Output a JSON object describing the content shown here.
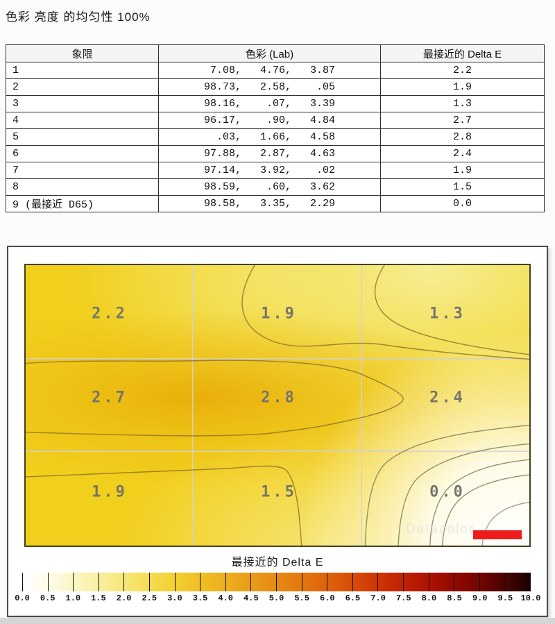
{
  "page_title": "色彩 亮度 的均匀性 100%",
  "table": {
    "headers": {
      "quadrant": "象限",
      "lab": "色彩 (Lab)",
      "delta_e": "最接近的 Delta E"
    },
    "rows": [
      {
        "quadrant": "1",
        "lab": " 7.08,   4.76,   3.87",
        "delta_e": "2.2"
      },
      {
        "quadrant": "2",
        "lab": "98.73,   2.58,    .05",
        "delta_e": "1.9"
      },
      {
        "quadrant": "3",
        "lab": "98.16,    .07,   3.39",
        "delta_e": "1.3"
      },
      {
        "quadrant": "4",
        "lab": "96.17,    .90,   4.84",
        "delta_e": "2.7"
      },
      {
        "quadrant": "5",
        "lab": "  .03,   1.66,   4.58",
        "delta_e": "2.8"
      },
      {
        "quadrant": "6",
        "lab": "97.88,   2.87,   4.63",
        "delta_e": "2.4"
      },
      {
        "quadrant": "7",
        "lab": "97.14,   3.92,    .02",
        "delta_e": "1.9"
      },
      {
        "quadrant": "8",
        "lab": "98.59,    .60,   3.62",
        "delta_e": "1.5"
      },
      {
        "quadrant": "9 (最接近 D65)",
        "lab": "98.58,   3.35,   2.29",
        "delta_e": "0.0"
      }
    ]
  },
  "chart_data": {
    "type": "heatmap",
    "title": "色彩 亮度 的均匀性 100%",
    "grid_rows": 3,
    "grid_cols": 3,
    "values": [
      [
        2.2,
        1.9,
        1.3
      ],
      [
        2.7,
        2.8,
        2.4
      ],
      [
        1.9,
        1.5,
        0.0
      ]
    ],
    "grid_labels": [
      [
        "2.2",
        "1.9",
        "1.3"
      ],
      [
        "2.7",
        "2.8",
        "2.4"
      ],
      [
        "1.9",
        "1.5",
        "0.0"
      ]
    ],
    "best_quadrant_note": "9 (最接近 D65)",
    "colorbar": {
      "label": "最接近的 Delta E",
      "min": 0.0,
      "max": 10.0,
      "step": 0.5,
      "ticks": [
        "0.0",
        "0.5",
        "1.0",
        "1.5",
        "2.0",
        "2.5",
        "3.0",
        "3.5",
        "4.0",
        "4.5",
        "5.0",
        "5.5",
        "6.0",
        "6.5",
        "7.0",
        "7.5",
        "8.0",
        "8.5",
        "9.0",
        "9.5",
        "10.0"
      ],
      "colors": [
        "#ffffff",
        "#fefce9",
        "#fbf6c6",
        "#f9efa0",
        "#f7e778",
        "#f5dc50",
        "#f3cf32",
        "#f0bf24",
        "#edae1e",
        "#ea9c19",
        "#e78a14",
        "#e37710",
        "#de620c",
        "#d74c08",
        "#cd3505",
        "#bf2103",
        "#ab1302",
        "#910a01",
        "#710501",
        "#4b0301",
        "#190100"
      ]
    },
    "accent_colors": {
      "logo_bar_red": "#ee1d1d",
      "base_yellow": "#f1cf1d"
    }
  },
  "watermark": "Datacolor"
}
